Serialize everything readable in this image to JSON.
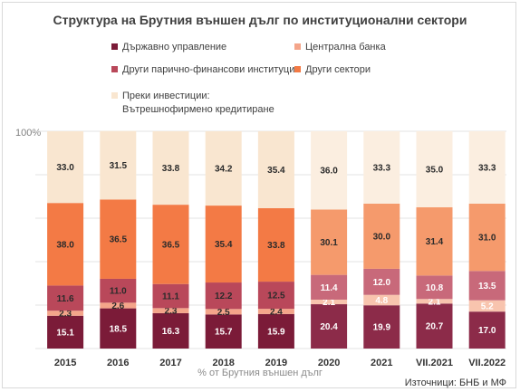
{
  "chart_data": {
    "type": "bar",
    "stacked": true,
    "title": "Структура на Брутния външен дълг по институционални сектори",
    "xlabel": "% от Брутния външен дълг",
    "ylabel": "",
    "y_tick_label": "100%",
    "ylim": [
      0,
      100
    ],
    "source": "Източници: БНБ и МФ",
    "categories": [
      "2015",
      "2016",
      "2017",
      "2018",
      "2019",
      "2020",
      "2021",
      "VII.2021",
      "VII.2022"
    ],
    "series": [
      {
        "name": "Държавно управление",
        "color": "#7b1b38",
        "labels": [
          "15.1",
          "18.5",
          "16.3",
          "15.7",
          "15.9",
          "20.4",
          "19.9",
          "20.7",
          "17.0"
        ],
        "values": [
          15.1,
          18.5,
          16.3,
          15.7,
          15.9,
          20.4,
          19.9,
          20.7,
          17.0
        ]
      },
      {
        "name": "Централна банка",
        "color": "#f4a58a",
        "labels": [
          "2.3",
          "2.6",
          "2.3",
          "2.5",
          "2.4",
          "2.1",
          "4.8",
          "2.1",
          "5.2"
        ],
        "values": [
          2.3,
          2.6,
          2.3,
          2.5,
          2.4,
          2.1,
          4.8,
          2.1,
          5.2
        ]
      },
      {
        "name": "Други парично-финансови институции",
        "color": "#b9485a",
        "labels": [
          "11.6",
          "11.0",
          "11.1",
          "12.2",
          "12.5",
          "11.4",
          "12.0",
          "10.8",
          "13.5"
        ],
        "values": [
          11.6,
          11.0,
          11.1,
          12.2,
          12.5,
          11.4,
          12.0,
          10.8,
          13.5
        ]
      },
      {
        "name": "Други сектори",
        "color": "#f37a45",
        "labels": [
          "38.0",
          "36.5",
          "36.5",
          "35.4",
          "33.8",
          "30.1",
          "30.0",
          "31.4",
          "31.0"
        ],
        "values": [
          38.0,
          36.5,
          36.5,
          35.4,
          33.8,
          30.1,
          30.0,
          31.4,
          31.0
        ]
      },
      {
        "name": "Преки инвестиции: Вътрешнофирмено кредитиране",
        "name_lines": [
          "Преки инвестиции:",
          "Вътрешнофирмено кредитиране"
        ],
        "color": "#f9e6d0",
        "labels": [
          "33.0",
          "31.5",
          "33.8",
          "34.2",
          "35.4",
          "36.0",
          "33.3",
          "35.0",
          "33.3"
        ],
        "values": [
          33.0,
          31.5,
          33.8,
          34.2,
          35.4,
          36.0,
          33.3,
          35.0,
          33.3
        ]
      }
    ],
    "highlight_colors": {
      "Държавно управление": "#8c2b49",
      "Централна банка": "#f8c4ae",
      "Други парично-финансови институции": "#c8697a",
      "Други сектори": "#f59a6c",
      "Преки инвестиции: Вътрешнофирмено кредитиране": "#fbeee0"
    },
    "highlighted_categories": [
      "2020",
      "2021",
      "VII.2021",
      "VII.2022"
    ],
    "grid": true,
    "legend_position": "top"
  }
}
